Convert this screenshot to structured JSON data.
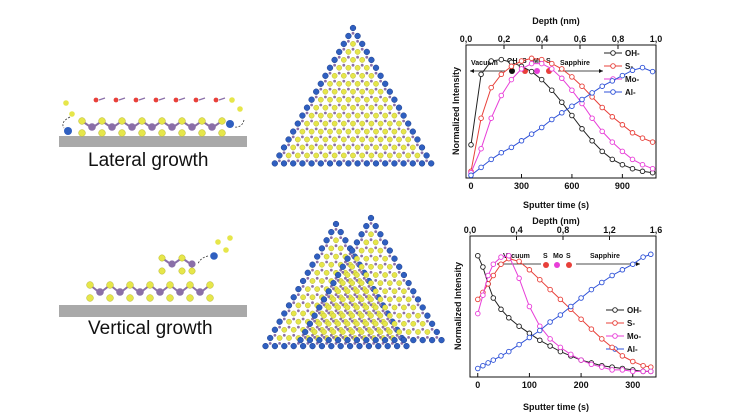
{
  "labels": {
    "lateral": "Lateral growth",
    "vertical": "Vertical growth"
  },
  "colors": {
    "sulfur": "#e6e64a",
    "molybdenum": "#8a6fa8",
    "oxygen": "#2f5fc0",
    "substrate": "#a9a9a9",
    "oh": "#222222",
    "s": "#e8403a",
    "mo": "#e83ed8",
    "al": "#2f52d8"
  },
  "chart_data": [
    {
      "type": "line",
      "title": "",
      "xlabel": "Sputter time (s)",
      "ylabel": "Normalized Intensity",
      "top_xlabel": "Depth (nm)",
      "xlim": [
        -30,
        1100
      ],
      "x_ticks": [
        "0",
        "300",
        "600",
        "900"
      ],
      "top_ticks": [
        "0,0",
        "0,2",
        "0,4",
        "0,6",
        "0,8",
        "1,0"
      ],
      "annotation": {
        "left": "Vacuum",
        "right": "Sapphire",
        "markers": [
          "OH",
          "S",
          "Mo",
          "S"
        ]
      },
      "legend": [
        "OH-",
        "S-",
        "Mo-",
        "Al-"
      ],
      "series": [
        {
          "name": "OH-",
          "x": [
            0,
            60,
            120,
            180,
            240,
            300,
            360,
            420,
            480,
            540,
            600,
            660,
            720,
            780,
            840,
            900,
            960,
            1020,
            1080
          ],
          "y": [
            0.25,
            0.78,
            0.88,
            0.89,
            0.87,
            0.84,
            0.8,
            0.74,
            0.66,
            0.57,
            0.47,
            0.37,
            0.28,
            0.2,
            0.14,
            0.1,
            0.07,
            0.05,
            0.04
          ]
        },
        {
          "name": "S-",
          "x": [
            0,
            60,
            120,
            180,
            240,
            300,
            360,
            420,
            480,
            540,
            600,
            660,
            720,
            780,
            840,
            900,
            960,
            1020,
            1080
          ],
          "y": [
            0.05,
            0.45,
            0.68,
            0.78,
            0.84,
            0.88,
            0.9,
            0.89,
            0.86,
            0.82,
            0.76,
            0.69,
            0.61,
            0.53,
            0.46,
            0.4,
            0.34,
            0.3,
            0.27
          ]
        },
        {
          "name": "Mo-",
          "x": [
            0,
            60,
            120,
            180,
            240,
            300,
            360,
            420,
            480,
            540,
            600,
            660,
            720,
            780,
            840,
            900,
            960,
            1020,
            1080
          ],
          "y": [
            0.04,
            0.22,
            0.45,
            0.62,
            0.74,
            0.82,
            0.86,
            0.86,
            0.82,
            0.75,
            0.66,
            0.56,
            0.45,
            0.35,
            0.27,
            0.2,
            0.14,
            0.1,
            0.07
          ]
        },
        {
          "name": "Al-",
          "x": [
            0,
            60,
            120,
            180,
            240,
            300,
            360,
            420,
            480,
            540,
            600,
            660,
            720,
            780,
            840,
            900,
            960,
            1020,
            1080
          ],
          "y": [
            0.02,
            0.08,
            0.14,
            0.19,
            0.23,
            0.28,
            0.33,
            0.38,
            0.44,
            0.49,
            0.54,
            0.59,
            0.64,
            0.69,
            0.73,
            0.77,
            0.81,
            0.83,
            0.8
          ]
        }
      ]
    },
    {
      "type": "line",
      "title": "",
      "xlabel": "Sputter time (s)",
      "ylabel": "Normalized Intensity",
      "top_xlabel": "Depth (nm)",
      "xlim": [
        -15,
        345
      ],
      "x_ticks": [
        "0",
        "100",
        "200",
        "300"
      ],
      "top_ticks": [
        "0,0",
        "0,4",
        "0,8",
        "1,2",
        "1,6"
      ],
      "annotation": {
        "left": "Vacuum",
        "right": "Sapphire",
        "markers": [
          "S",
          "Mo",
          "S"
        ]
      },
      "legend": [
        "OH-",
        "S-",
        "Mo-",
        "Al-"
      ],
      "series": [
        {
          "name": "OH-",
          "x": [
            0,
            10,
            20,
            30,
            45,
            60,
            80,
            100,
            120,
            140,
            160,
            180,
            200,
            220,
            240,
            260,
            280,
            300,
            320,
            335
          ],
          "y": [
            0.86,
            0.78,
            0.66,
            0.56,
            0.48,
            0.42,
            0.36,
            0.31,
            0.26,
            0.22,
            0.18,
            0.15,
            0.12,
            0.1,
            0.08,
            0.07,
            0.06,
            0.05,
            0.04,
            0.04
          ]
        },
        {
          "name": "S-",
          "x": [
            0,
            10,
            20,
            30,
            45,
            60,
            80,
            100,
            120,
            140,
            160,
            180,
            200,
            220,
            240,
            260,
            280,
            300,
            320,
            335
          ],
          "y": [
            0.55,
            0.6,
            0.66,
            0.72,
            0.8,
            0.84,
            0.82,
            0.76,
            0.69,
            0.62,
            0.55,
            0.48,
            0.41,
            0.34,
            0.27,
            0.21,
            0.15,
            0.11,
            0.08,
            0.07
          ]
        },
        {
          "name": "Mo-",
          "x": [
            0,
            10,
            20,
            30,
            45,
            60,
            80,
            100,
            120,
            140,
            160,
            180,
            200,
            220,
            240,
            260,
            280,
            300,
            320,
            335
          ],
          "y": [
            0.45,
            0.58,
            0.72,
            0.8,
            0.85,
            0.86,
            0.7,
            0.5,
            0.36,
            0.27,
            0.21,
            0.16,
            0.12,
            0.09,
            0.07,
            0.05,
            0.05,
            0.04,
            0.04,
            0.04
          ]
        },
        {
          "name": "Al-",
          "x": [
            0,
            10,
            20,
            30,
            45,
            60,
            80,
            100,
            120,
            140,
            160,
            180,
            200,
            220,
            240,
            260,
            280,
            300,
            320,
            335
          ],
          "y": [
            0.06,
            0.08,
            0.1,
            0.12,
            0.15,
            0.18,
            0.23,
            0.28,
            0.33,
            0.39,
            0.44,
            0.5,
            0.56,
            0.62,
            0.67,
            0.72,
            0.76,
            0.8,
            0.85,
            0.87
          ]
        }
      ]
    }
  ]
}
